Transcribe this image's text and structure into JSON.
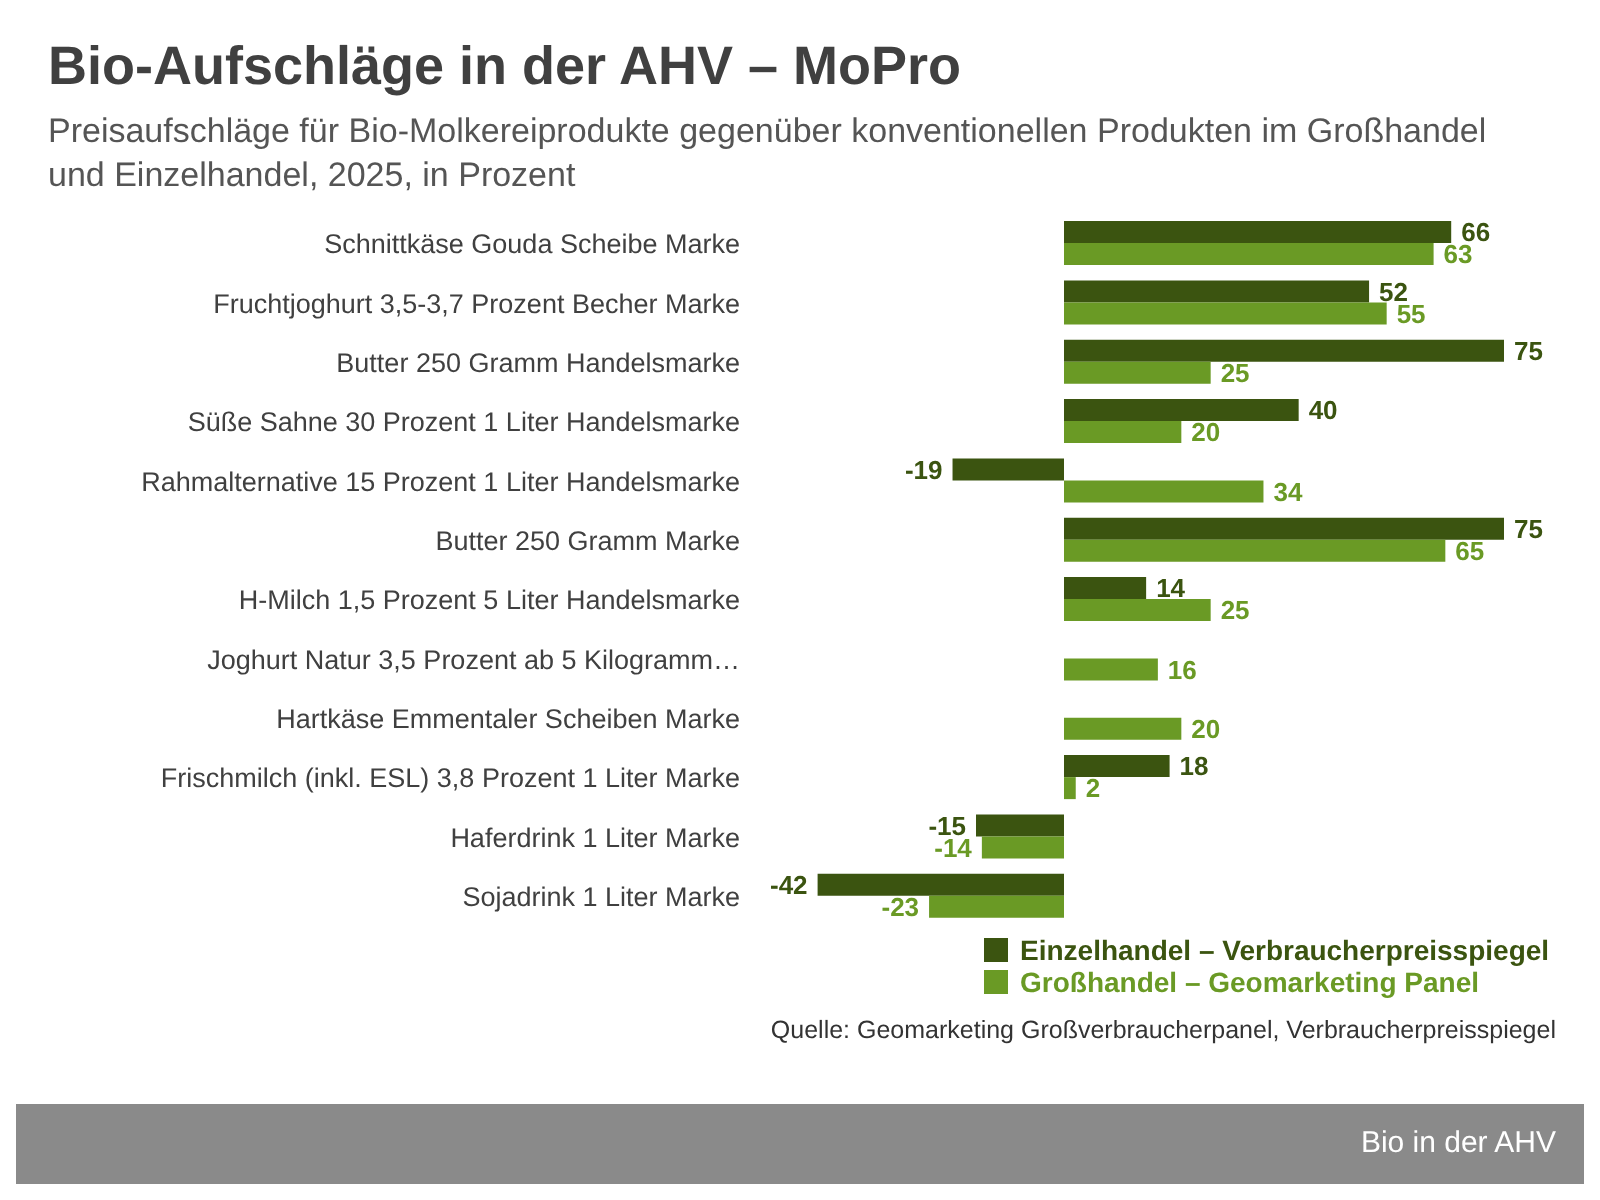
{
  "chart_data": {
    "type": "bar",
    "orientation": "horizontal",
    "title": "Bio-Aufschläge in der AHV – MoPro",
    "subtitle": "Preisaufschläge für Bio-Molkereiprodukte gegenüber konventionellen Produkten im Großhandel und Einzelhandel, 2025, in Prozent",
    "categories": [
      "Schnittkäse Gouda Scheibe Marke",
      "Fruchtjoghurt 3,5-3,7 Prozent Becher Marke",
      "Butter 250 Gramm Handelsmarke",
      "Süße Sahne 30 Prozent 1 Liter Handelsmarke",
      "Rahmalternative 15 Prozent 1 Liter Handelsmarke",
      "Butter 250 Gramm Marke",
      "H-Milch 1,5 Prozent 5 Liter Handelsmarke",
      "Joghurt Natur 3,5 Prozent ab 5 Kilogramm…",
      "Hartkäse Emmentaler Scheiben Marke",
      "Frischmilch (inkl. ESL) 3,8 Prozent 1 Liter Marke",
      "Haferdrink 1 Liter Marke",
      "Sojadrink 1 Liter Marke"
    ],
    "series": [
      {
        "name": "Einzelhandel – Verbraucherpreisspiegel",
        "color": "#3b5410",
        "values": [
          66,
          52,
          75,
          40,
          -19,
          75,
          14,
          null,
          null,
          18,
          -15,
          -42
        ]
      },
      {
        "name": "Großhandel – Geomarketing Panel",
        "color": "#6a9a25",
        "values": [
          63,
          55,
          25,
          20,
          34,
          65,
          25,
          16,
          20,
          2,
          -14,
          -23
        ]
      }
    ],
    "data_labels": true,
    "legend": "bottom right",
    "grid": false,
    "annotations": [
      "Quelle: Geomarketing Großverbraucherpanel, Verbraucherpreisspiegel",
      "Bio in der AHV"
    ]
  }
}
